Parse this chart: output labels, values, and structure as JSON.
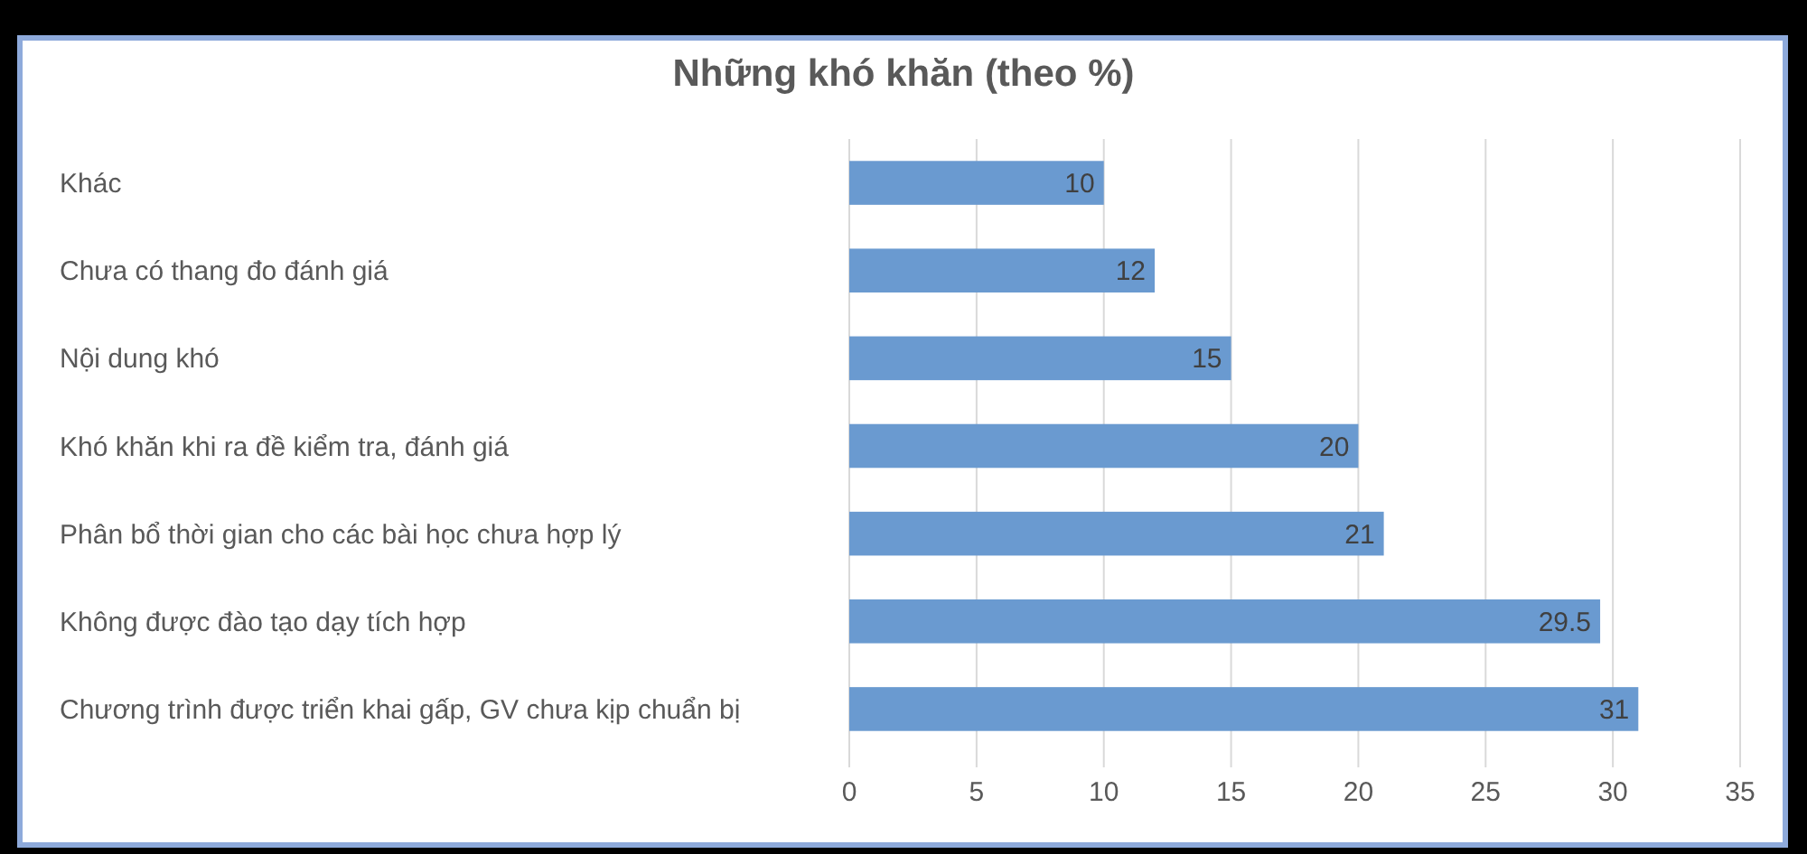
{
  "chart_data": {
    "type": "bar",
    "orientation": "horizontal",
    "title": "Những khó khăn (theo %)",
    "categories": [
      "Khác",
      "Chưa có thang đo đánh giá",
      "Nội dung khó",
      "Khó khăn khi ra đề kiểm tra, đánh giá",
      "Phân bổ thời gian cho các bài học chưa hợp lý",
      "Không được đào tạo dạy tích hợp",
      "Chương trình được triển khai gấp, GV chưa kịp chuẩn bị"
    ],
    "values": [
      10,
      12,
      15,
      20,
      21,
      29.5,
      31
    ],
    "color": "#6a9ad0",
    "xlim": [
      0,
      35
    ],
    "xticks": [
      0,
      5,
      10,
      15,
      20,
      25,
      30,
      35
    ],
    "grid": "x",
    "data_labels": true
  }
}
